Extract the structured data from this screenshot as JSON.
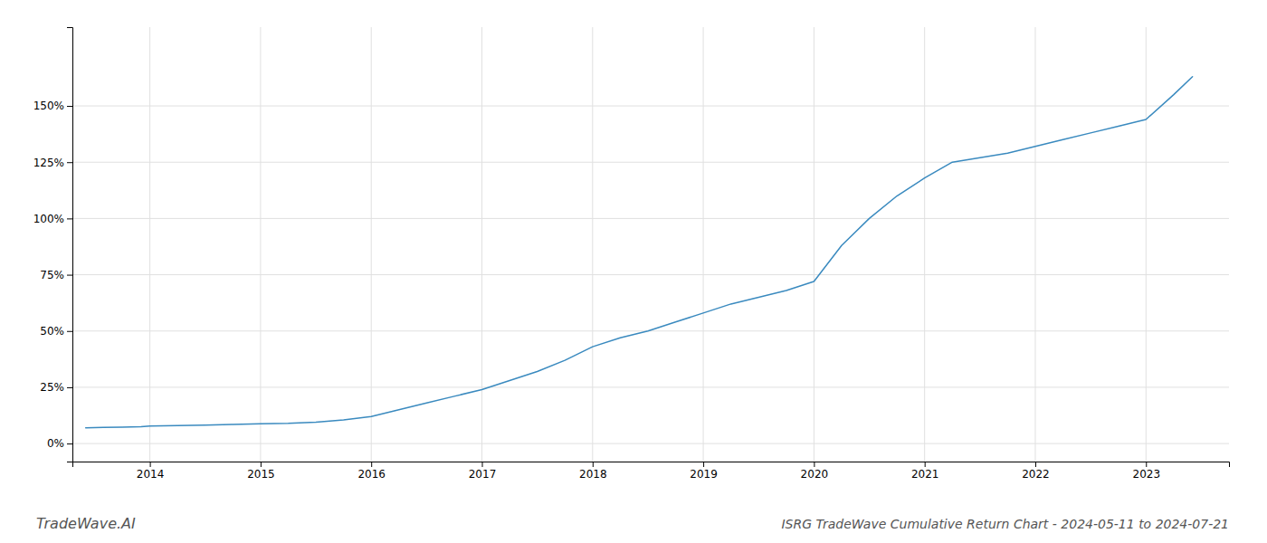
{
  "chart_data": {
    "type": "line",
    "title": "ISRG TradeWave Cumulative Return Chart - 2024-05-11 to 2024-07-21",
    "annotations": [
      {
        "text": "TradeWave.AI"
      }
    ],
    "color": "#3a8abf",
    "grid": true,
    "x": [
      2013.42,
      2013.58,
      2013.75,
      2013.92,
      2014.0,
      2014.25,
      2014.5,
      2014.75,
      2015.0,
      2015.25,
      2015.5,
      2015.75,
      2016.0,
      2016.25,
      2016.5,
      2016.75,
      2017.0,
      2017.25,
      2017.5,
      2017.75,
      2018.0,
      2018.25,
      2018.5,
      2018.75,
      2019.0,
      2019.25,
      2019.5,
      2019.75,
      2020.0,
      2020.25,
      2020.5,
      2020.75,
      2021.0,
      2021.25,
      2021.5,
      2021.75,
      2022.0,
      2022.25,
      2022.5,
      2022.75,
      2023.0,
      2023.25,
      2023.42
    ],
    "values": [
      7.0,
      7.2,
      7.3,
      7.5,
      7.8,
      8.0,
      8.2,
      8.5,
      8.8,
      9.0,
      9.5,
      10.5,
      12.0,
      15.0,
      18.0,
      21.0,
      24.0,
      28.0,
      32.0,
      37.0,
      43.0,
      47.0,
      50.0,
      54.0,
      58.0,
      62.0,
      65.0,
      68.0,
      72.0,
      88.0,
      100.0,
      110.0,
      118.0,
      125.0,
      127.0,
      129.0,
      132.0,
      135.0,
      138.0,
      141.0,
      144.0,
      155.0,
      163.0
    ],
    "xlim": [
      2013.3,
      2023.75
    ],
    "xticks": [
      2014,
      2015,
      2016,
      2017,
      2018,
      2019,
      2020,
      2021,
      2022,
      2023
    ],
    "ylim": [
      -8,
      185
    ],
    "yticks": [
      {
        "value": 0,
        "label": "0%"
      },
      {
        "value": 25,
        "label": "25%"
      },
      {
        "value": 50,
        "label": "50%"
      },
      {
        "value": 75,
        "label": "75%"
      },
      {
        "value": 100,
        "label": "100%"
      },
      {
        "value": 125,
        "label": "125%"
      },
      {
        "value": 150,
        "label": "150%"
      }
    ]
  }
}
